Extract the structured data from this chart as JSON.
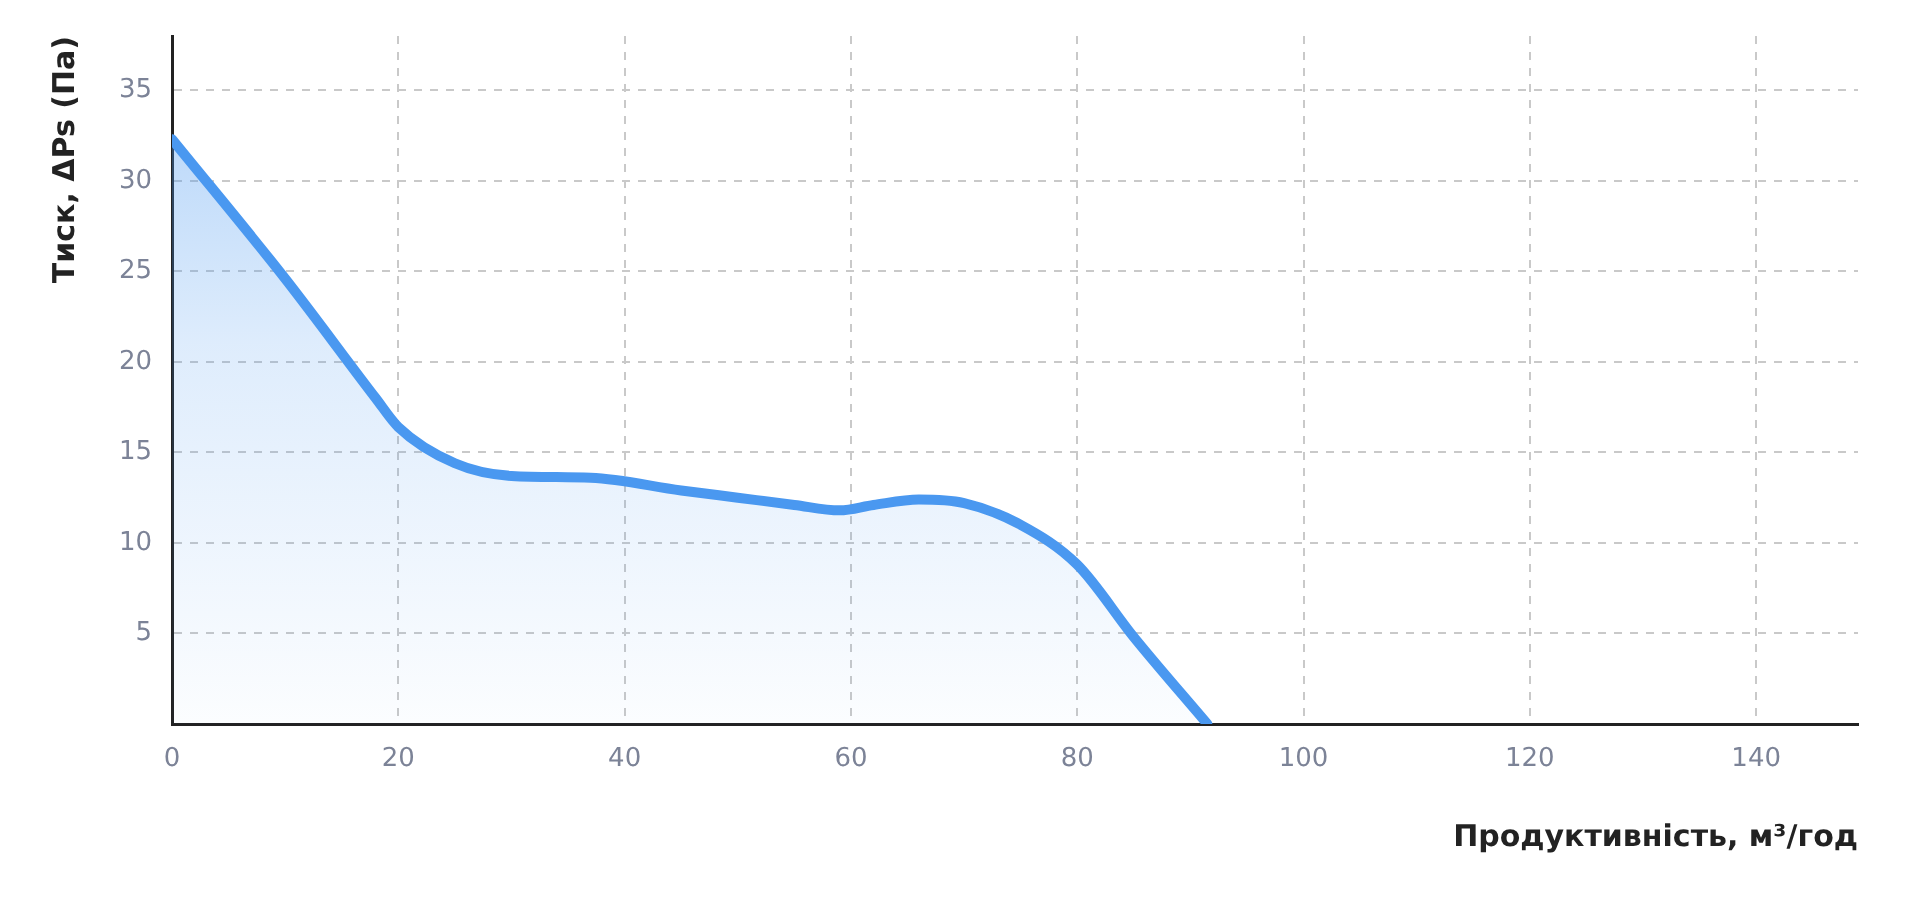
{
  "chart_data": {
    "type": "area",
    "xlabel": "Продуктивність, м³/год",
    "ylabel": "Тиск, ΔPs (Па)",
    "x": [
      0,
      10,
      18,
      20,
      25,
      30,
      37,
      45,
      50,
      55,
      59,
      62,
      66,
      70,
      75,
      80,
      85,
      91.5
    ],
    "series": [
      {
        "color": "#4a98f0",
        "values": [
          32.3,
          24.6,
          18,
          16.4,
          14.4,
          13.7,
          13.6,
          12.9,
          12.5,
          12.1,
          11.8,
          12.1,
          12.4,
          12.2,
          11,
          8.8,
          4.8,
          0
        ]
      }
    ],
    "xlim": [
      0,
      149
    ],
    "ylim": [
      0,
      38
    ],
    "xticks": [
      0,
      20,
      40,
      60,
      80,
      100,
      120,
      140
    ],
    "yticks": [
      5,
      10,
      15,
      20,
      25,
      30,
      35
    ],
    "grid": true,
    "line_style": "solid"
  }
}
